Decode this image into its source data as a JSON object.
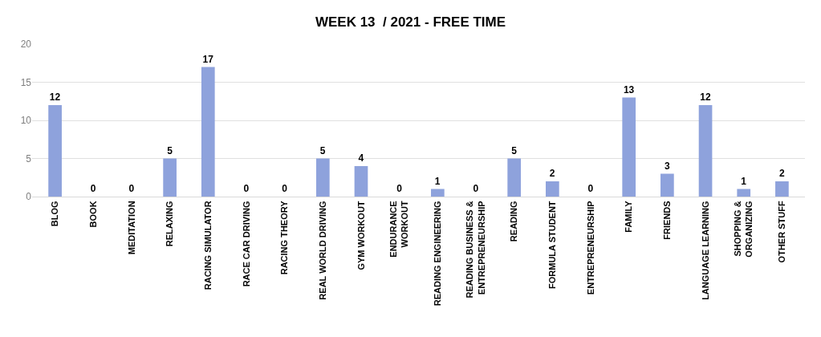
{
  "chart_data": {
    "type": "bar",
    "title": "WEEK 13  / 2021 - FREE TIME",
    "categories": [
      "BLOG",
      "BOOK",
      "MEDITATION",
      "RELAXING",
      "RACING SIMULATOR",
      "RACE CAR DRIVING",
      "RACING THEORY",
      "REAL WORLD DRIVING",
      "GYM WORKOUT",
      "ENDURANCE\nWORKOUT",
      "READING ENGINEERING",
      "READING BUSINESS &\nENTREPRENEURSHIP",
      "READING",
      "FORMULA STUDENT",
      "ENTREPRENEURSHIP",
      "FAMILY",
      "FRIENDS",
      "LANGUAGE LEARNING",
      "SHOPPING &\nORGANIZING",
      "OTHER STUFF"
    ],
    "values": [
      12,
      0,
      0,
      5,
      17,
      0,
      0,
      5,
      4,
      0,
      1,
      0,
      5,
      2,
      0,
      13,
      3,
      12,
      1,
      2
    ],
    "color": "#8ea2dc",
    "ylim": [
      0,
      20
    ],
    "yticks": [
      0,
      5,
      10,
      15,
      20
    ],
    "grid": "y",
    "data_labels": true
  }
}
